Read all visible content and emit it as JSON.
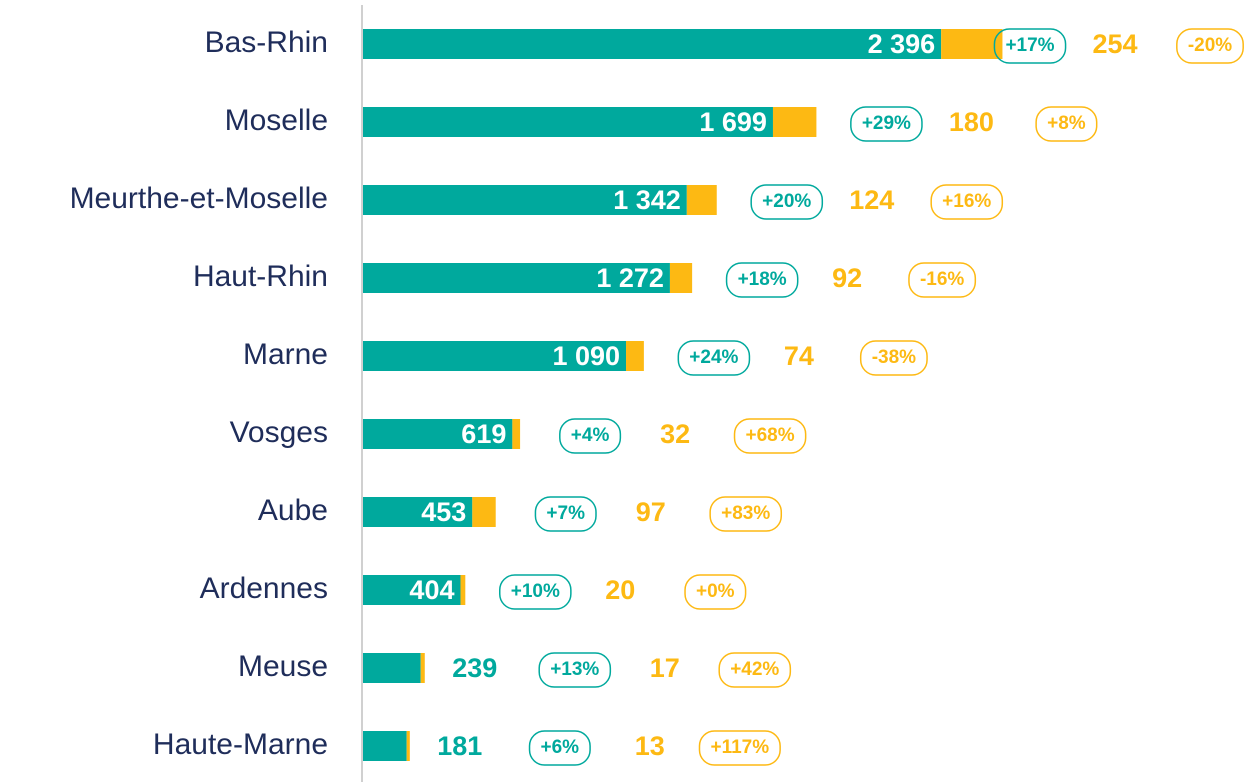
{
  "chart_data": {
    "type": "bar",
    "orientation": "horizontal",
    "stacked": true,
    "categories": [
      "Bas-Rhin",
      "Moselle",
      "Meurthe-et-Moselle",
      "Haut-Rhin",
      "Marne",
      "Vosges",
      "Aube",
      "Ardennes",
      "Meuse",
      "Haute-Marne"
    ],
    "series": [
      {
        "color": "#00a99d",
        "values": [
          2396,
          1699,
          1342,
          1272,
          1090,
          619,
          453,
          404,
          239,
          181
        ],
        "value_labels": [
          "2 396",
          "1 699",
          "1 342",
          "1 272",
          "1 090",
          "619",
          "453",
          "404",
          "239",
          "181"
        ],
        "change_labels": [
          "+17%",
          "+29%",
          "+20%",
          "+18%",
          "+24%",
          "+4%",
          "+7%",
          "+10%",
          "+13%",
          "+6%"
        ]
      },
      {
        "color": "#fdb913",
        "values": [
          254,
          180,
          124,
          92,
          74,
          32,
          97,
          20,
          17,
          13
        ],
        "change_labels": [
          "-20%",
          "+8%",
          "+16%",
          "-16%",
          "-38%",
          "+68%",
          "+83%",
          "+0%",
          "+42%",
          "+117%"
        ]
      }
    ]
  }
}
